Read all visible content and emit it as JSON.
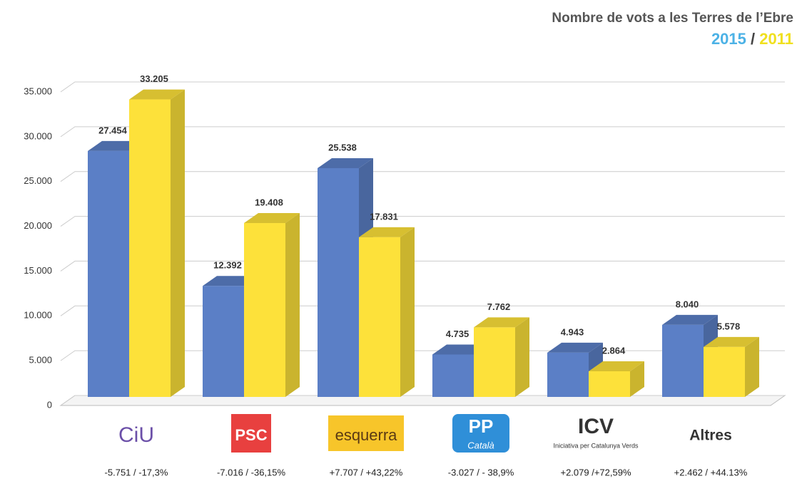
{
  "chart_data": {
    "type": "bar3d",
    "title": "Nombre de vots a les Terres de l’Ebre",
    "legend_separator": "/",
    "categories": [
      "CiU",
      "PSC",
      "esquerra",
      "PP",
      "ICV",
      "Altres"
    ],
    "logo_subtexts": [
      null,
      null,
      null,
      "Català",
      "Iniciativa per Catalunya Verds",
      null
    ],
    "changes": [
      "-5.751 / -17,3%",
      "-7.016 / -36,15%",
      "+7.707 / +43,22%",
      "-3.027 / - 38,9%",
      "+2.079 /+72,59%",
      "+2.462 / +44.13%"
    ],
    "series": [
      {
        "name": "2015",
        "color": "#5b7fc6",
        "legend_color": "#4cb2e6",
        "values": [
          27454,
          12392,
          25538,
          4735,
          4943,
          8040
        ],
        "value_labels": [
          "27.454",
          "12.392",
          "25.538",
          "4.735",
          "4.943",
          "8.040"
        ]
      },
      {
        "name": "2011",
        "color": "#fde13a",
        "legend_color": "#f0e01e",
        "values": [
          33205,
          19408,
          17831,
          7762,
          2864,
          5578
        ],
        "value_labels": [
          "33.205",
          "19.408",
          "17.831",
          "7.762",
          "2.864",
          "5.578"
        ]
      }
    ],
    "ylim": [
      0,
      35000
    ],
    "yticks": [
      0,
      {
        "value": 5000,
        "label": "5.000"
      },
      {
        "value": 10000,
        "label": "10.000"
      },
      {
        "value": 15000,
        "label": "15.000"
      },
      {
        "value": 20000,
        "label": "20.000"
      },
      {
        "value": 25000,
        "label": "25.000"
      },
      {
        "value": 30000,
        "label": "30.000"
      },
      {
        "value": 35000,
        "label": "35.000"
      }
    ],
    "grid": true
  }
}
